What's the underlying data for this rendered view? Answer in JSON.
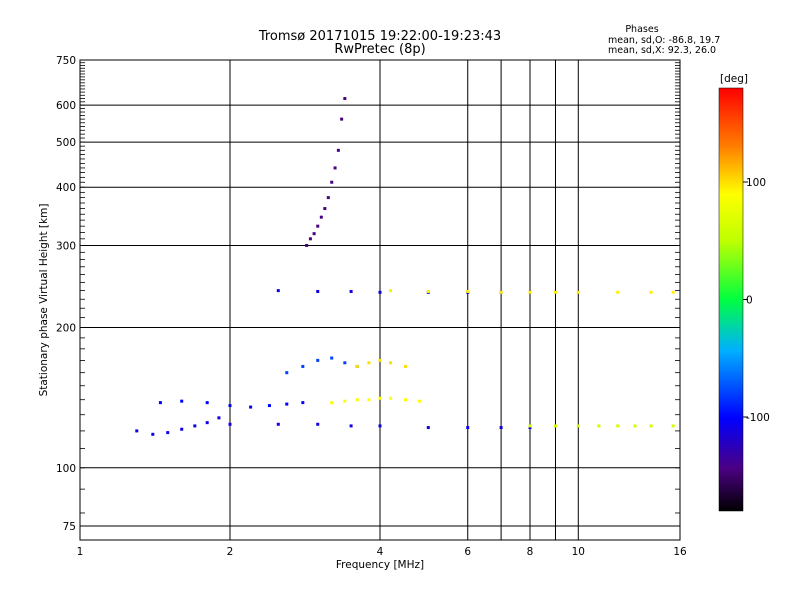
{
  "chart_data": {
    "type": "scatter",
    "title": "Tromsø 20171015 19:22:00-19:23:43",
    "subtitle": "RwPretec (8p)",
    "xlabel": "Frequency [MHz]",
    "ylabel": "Stationary phase Virtual Height [km]",
    "x_scale": "log",
    "y_scale": "log",
    "xlim": [
      1,
      16
    ],
    "ylim": [
      70,
      750
    ],
    "xticks": [
      1,
      2,
      4,
      6,
      8,
      10,
      16
    ],
    "yticks": [
      75,
      100,
      200,
      300,
      400,
      500,
      600,
      750
    ],
    "grid": true,
    "colorbar": {
      "label": "[deg]",
      "range": [
        -180,
        180
      ],
      "ticks": [
        100,
        0,
        -100
      ]
    },
    "stats": {
      "heading": "Phases",
      "line_o": "mean, sd,O: -86.8, 19.7",
      "line_x": "mean, sd,X:  92.3, 26.0"
    },
    "traces": [
      {
        "freq": [
          1.3,
          1.4,
          1.5,
          1.6,
          1.7,
          1.8,
          1.9
        ],
        "height": [
          120,
          118,
          119,
          121,
          123,
          125,
          128
        ],
        "phase": -110
      },
      {
        "freq": [
          1.45,
          1.6,
          1.8,
          2.0,
          2.2,
          2.4,
          2.6,
          2.8
        ],
        "height": [
          138,
          139,
          138,
          136,
          135,
          136,
          137,
          138
        ],
        "phase": -100
      },
      {
        "freq": [
          2.0,
          2.5,
          3.0,
          3.5,
          4.0,
          5.0,
          6.0,
          7.0,
          8.0
        ],
        "height": [
          124,
          124,
          124,
          123,
          123,
          122,
          122,
          122,
          122
        ],
        "phase": -110
      },
      {
        "freq": [
          8.0,
          9.0,
          10.0,
          11.0,
          12.0,
          13.0,
          14.0,
          15.5
        ],
        "height": [
          123,
          123,
          123,
          123,
          123,
          123,
          123,
          123
        ],
        "phase": 60
      },
      {
        "freq": [
          3.2,
          3.4,
          3.6,
          3.8,
          4.0,
          4.2,
          4.5,
          4.8
        ],
        "height": [
          138,
          139,
          140,
          140,
          141,
          141,
          140,
          139
        ],
        "phase": 90
      },
      {
        "freq": [
          2.5,
          3.0,
          3.5,
          4.0,
          5.0,
          6.0,
          7.0,
          8.0
        ],
        "height": [
          240,
          239,
          239,
          238,
          238,
          238,
          238,
          238
        ],
        "phase": -110
      },
      {
        "freq": [
          4.2,
          5.0,
          6.0,
          7.0,
          8.0,
          9.0,
          10.0,
          12.0,
          14.0,
          15.5
        ],
        "height": [
          240,
          239,
          239,
          238,
          238,
          238,
          238,
          238,
          238,
          238
        ],
        "phase": 95
      },
      {
        "freq": [
          2.85,
          2.9,
          2.95,
          3.0,
          3.05,
          3.1,
          3.15,
          3.2,
          3.25,
          3.3,
          3.35,
          3.4
        ],
        "height": [
          300,
          310,
          318,
          330,
          345,
          360,
          380,
          410,
          440,
          480,
          560,
          620
        ],
        "phase": -145
      },
      {
        "freq": [
          2.6,
          2.8,
          3.0,
          3.2,
          3.4,
          3.6
        ],
        "height": [
          160,
          165,
          170,
          172,
          168,
          165
        ],
        "phase": -80
      },
      {
        "freq": [
          3.6,
          3.8,
          4.0,
          4.2,
          4.5
        ],
        "height": [
          165,
          168,
          170,
          168,
          165
        ],
        "phase": 100
      }
    ]
  }
}
